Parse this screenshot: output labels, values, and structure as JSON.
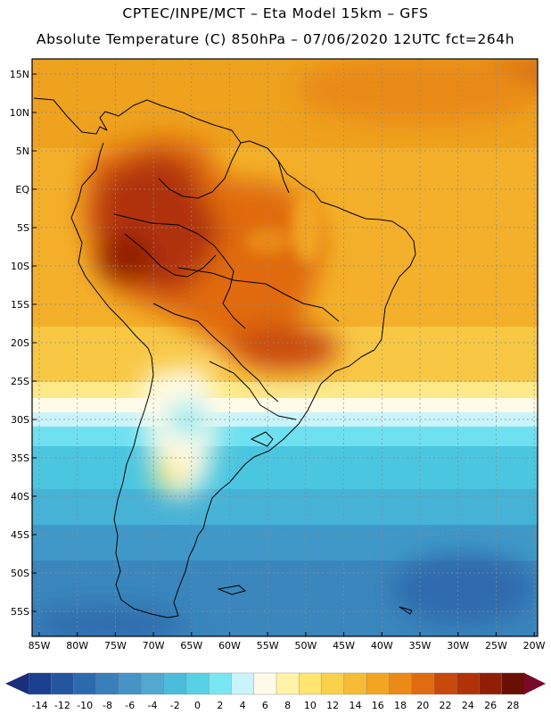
{
  "header": {
    "line1": "CPTEC/INPE/MCT –  Eta Model 15km – GFS",
    "line2": "Absolute Temperature (C) 850hPa – 07/06/2020 12UTC fct=264h"
  },
  "axes": {
    "lat_labels": [
      "15N",
      "10N",
      "5N",
      "EQ",
      "5S",
      "10S",
      "15S",
      "20S",
      "25S",
      "30S",
      "35S",
      "40S",
      "45S",
      "50S",
      "55S"
    ],
    "lon_labels": [
      "85W",
      "80W",
      "75W",
      "70W",
      "65W",
      "60W",
      "55W",
      "50W",
      "45W",
      "40W",
      "35W",
      "30W",
      "25W",
      "20W"
    ]
  },
  "colorbar": {
    "labels": [
      "-14",
      "-12",
      "-10",
      "-8",
      "-6",
      "-4",
      "-2",
      "0",
      "2",
      "4",
      "6",
      "8",
      "10",
      "12",
      "14",
      "16",
      "18",
      "20",
      "22",
      "24",
      "26",
      "28"
    ],
    "colors": [
      "#1b3f91",
      "#24559f",
      "#2d6aad",
      "#3a7fba",
      "#4693c5",
      "#52a8cf",
      "#4bbcdc",
      "#58d1e6",
      "#78e7f3",
      "#c9f4fb",
      "#fffae8",
      "#fff3a8",
      "#ffe470",
      "#f9d14a",
      "#f5bc34",
      "#f2a521",
      "#ea8a17",
      "#e06b10",
      "#c9490b",
      "#b03208",
      "#8f1f05",
      "#6a0f03"
    ],
    "low_color": "#1a2e7a",
    "high_color": "#7a0a2a"
  }
}
